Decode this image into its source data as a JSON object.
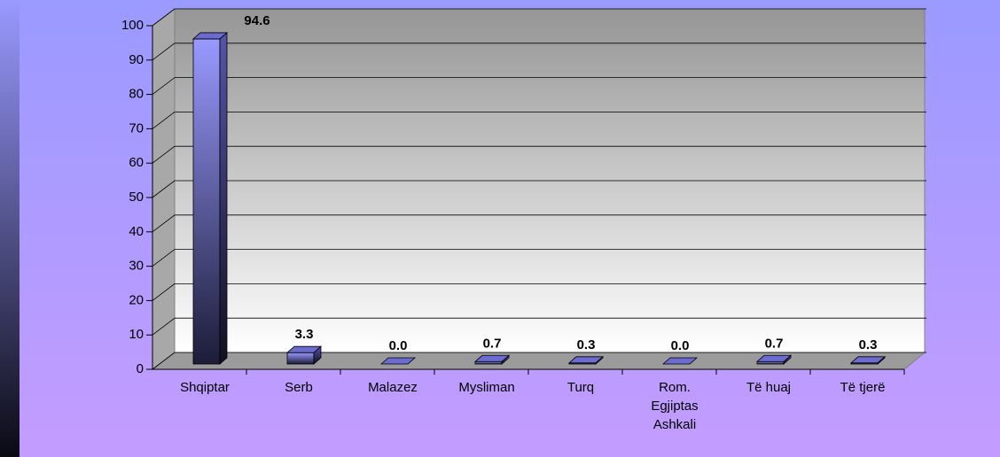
{
  "chart_data": {
    "type": "bar3d",
    "categories": [
      "Shqiptar",
      "Serb",
      "Malazez",
      "Mysliman",
      "Turq",
      "Rom. Egjiptas Ashkali",
      "Të huaj",
      "Të tjerë"
    ],
    "values": [
      94.6,
      3.3,
      0.0,
      0.7,
      0.3,
      0.0,
      0.7,
      0.3
    ],
    "value_labels": [
      "94.6",
      "3.3",
      "0.0",
      "0.7",
      "0.3",
      "0.0",
      "0.7",
      "0.3"
    ],
    "color": "#9999ff",
    "ylim": [
      0,
      100
    ],
    "yticks": [
      0,
      10,
      20,
      30,
      40,
      50,
      60,
      70,
      80,
      90,
      100
    ],
    "grid": true
  }
}
